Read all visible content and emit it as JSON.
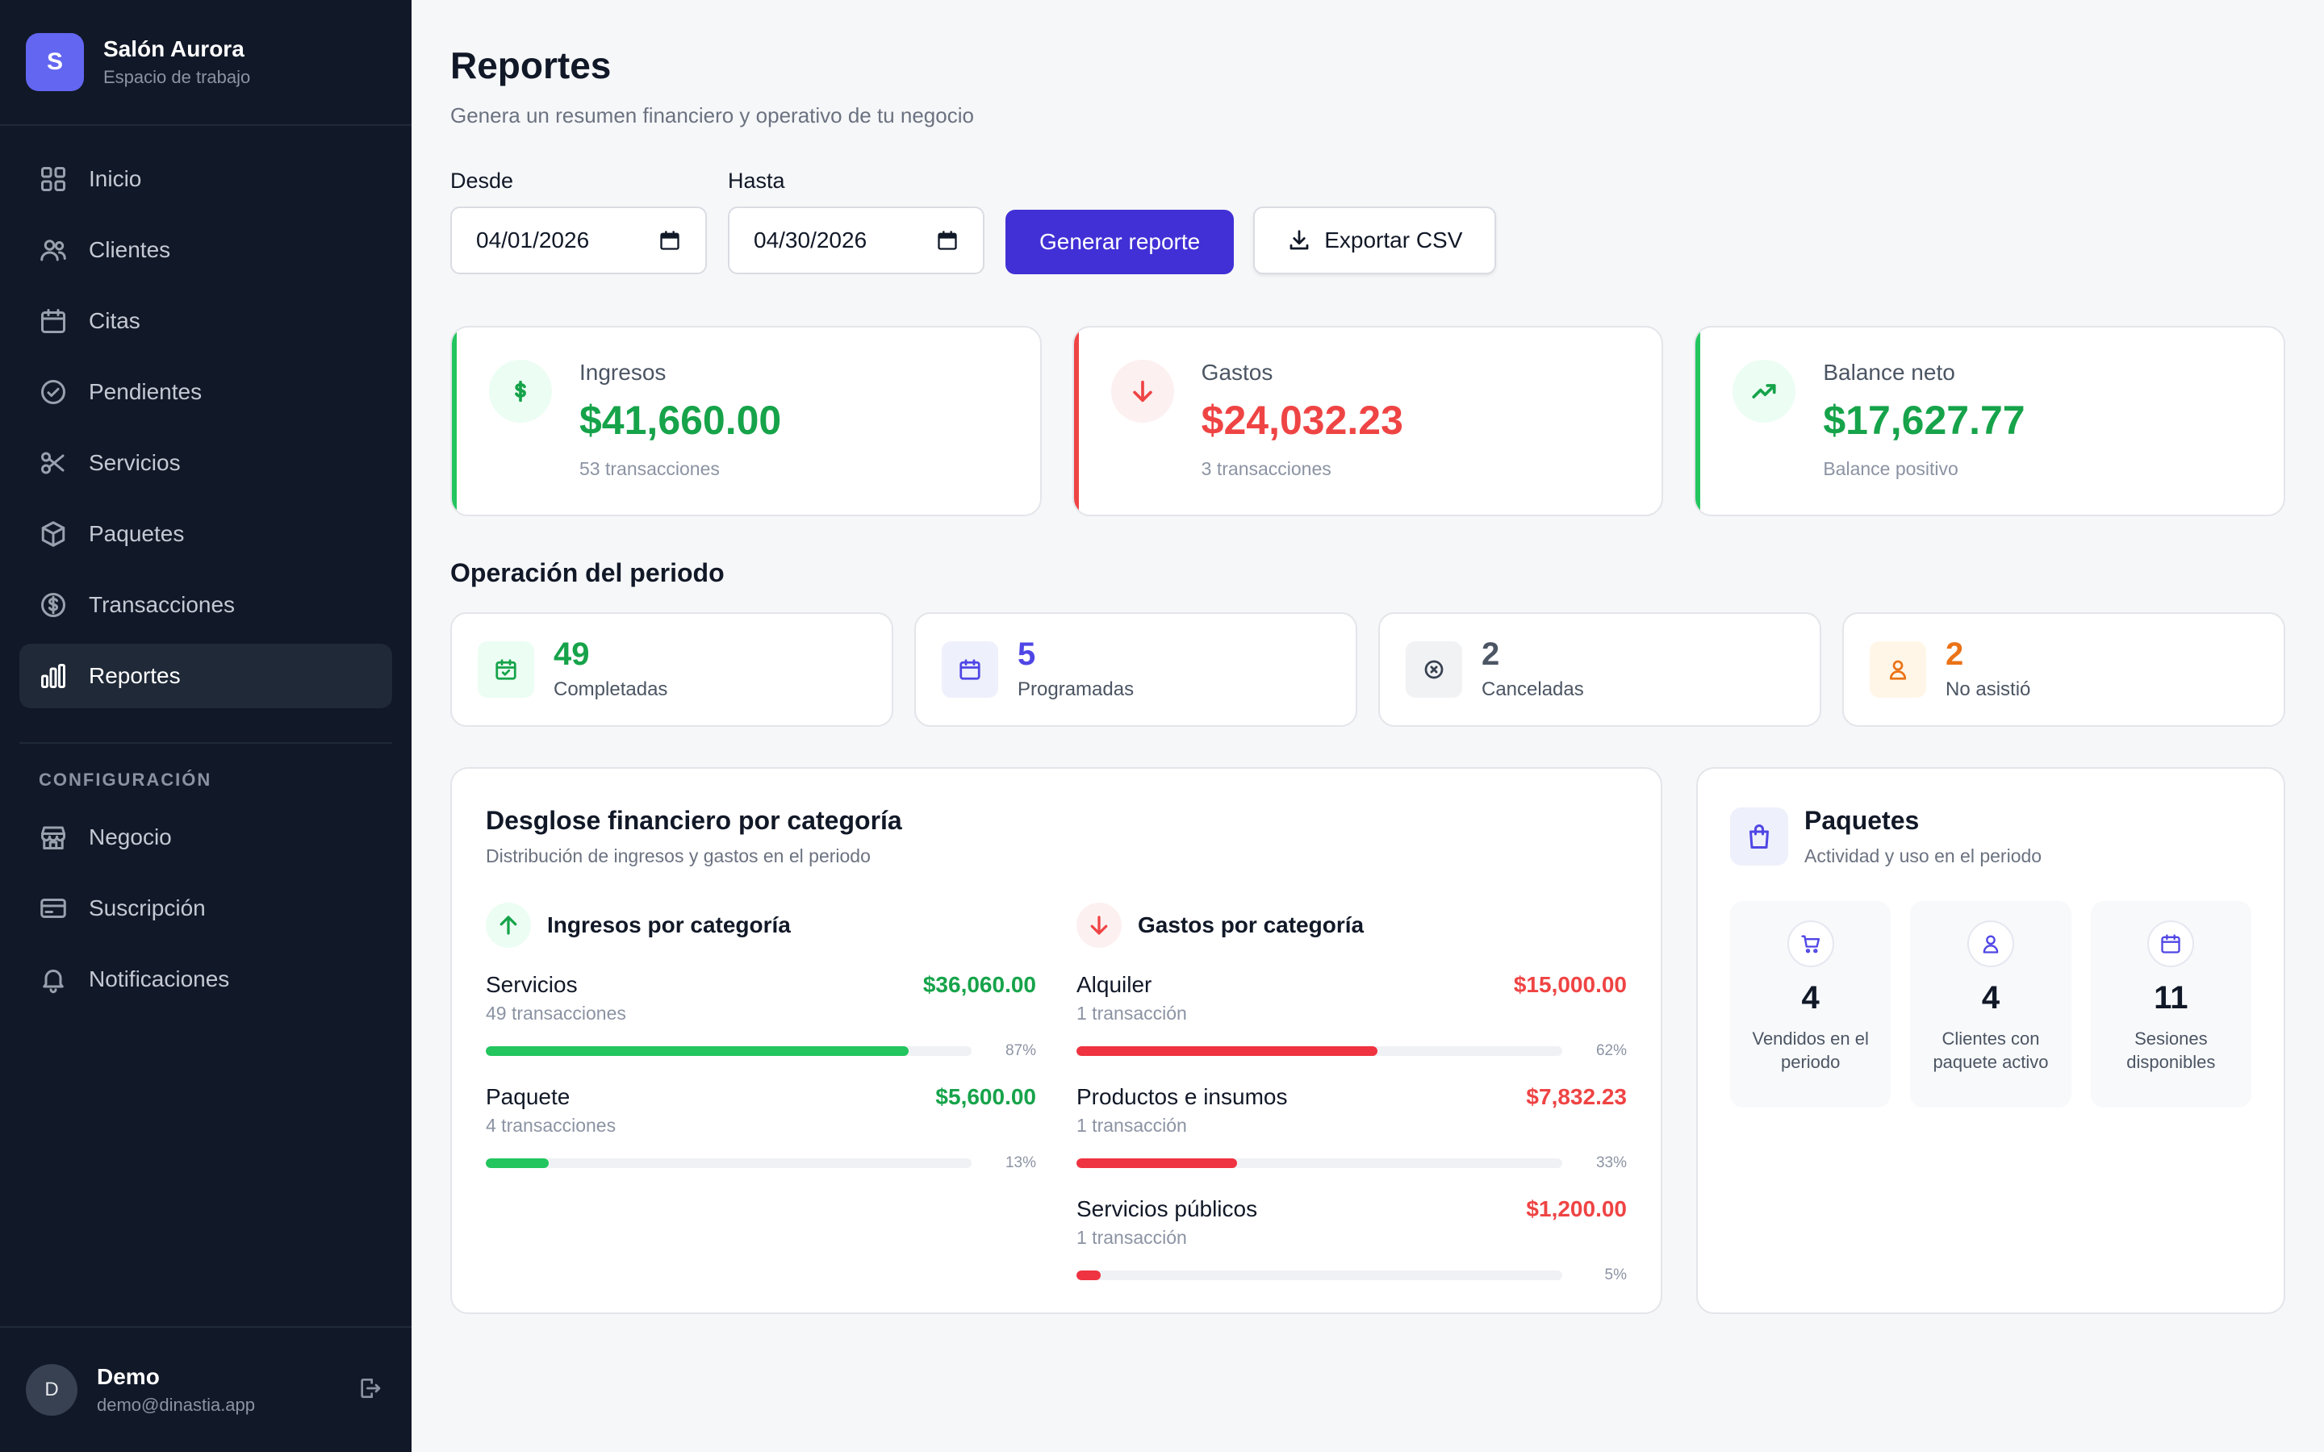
{
  "brand": {
    "initial": "S",
    "name": "Salón Aurora",
    "subtitle": "Espacio de trabajo"
  },
  "nav": {
    "items": [
      {
        "label": "Inicio",
        "icon": "grid-icon"
      },
      {
        "label": "Clientes",
        "icon": "users-icon"
      },
      {
        "label": "Citas",
        "icon": "calendar-icon"
      },
      {
        "label": "Pendientes",
        "icon": "check-circle-icon"
      },
      {
        "label": "Servicios",
        "icon": "scissors-icon"
      },
      {
        "label": "Paquetes",
        "icon": "box-icon"
      },
      {
        "label": "Transacciones",
        "icon": "dollar-circle-icon"
      },
      {
        "label": "Reportes",
        "icon": "bar-chart-icon",
        "active": true
      }
    ],
    "section_label": "CONFIGURACIÓN",
    "config_items": [
      {
        "label": "Negocio",
        "icon": "store-icon"
      },
      {
        "label": "Suscripción",
        "icon": "credit-card-icon"
      },
      {
        "label": "Notificaciones",
        "icon": "bell-icon"
      }
    ]
  },
  "user": {
    "initial": "D",
    "name": "Demo",
    "email": "demo@dinastia.app"
  },
  "page": {
    "title": "Reportes",
    "subtitle": "Genera un resumen financiero y operativo de tu negocio"
  },
  "filters": {
    "from_label": "Desde",
    "from_value": "04/01/2026",
    "to_label": "Hasta",
    "to_value": "04/30/2026",
    "generate_label": "Generar reporte",
    "export_label": "Exportar CSV"
  },
  "summary": {
    "income": {
      "label": "Ingresos",
      "value": "$41,660.00",
      "meta": "53 transacciones"
    },
    "expenses": {
      "label": "Gastos",
      "value": "$24,032.23",
      "meta": "3 transacciones"
    },
    "balance": {
      "label": "Balance neto",
      "value": "$17,627.77",
      "meta": "Balance positivo"
    }
  },
  "operations": {
    "title": "Operación del periodo",
    "completed": {
      "value": "49",
      "label": "Completadas",
      "color": "#16a34a"
    },
    "scheduled": {
      "value": "5",
      "label": "Programadas",
      "color": "#4f46e5"
    },
    "cancelled": {
      "value": "2",
      "label": "Canceladas",
      "color": "#4b5563"
    },
    "no_show": {
      "value": "2",
      "label": "No asistió",
      "color": "#ea7317"
    }
  },
  "breakdown": {
    "title": "Desglose financiero por categoría",
    "subtitle": "Distribución de ingresos y gastos en el periodo",
    "income_title": "Ingresos por categoría",
    "expense_title": "Gastos por categoría",
    "income": [
      {
        "name": "Servicios",
        "amount": "$36,060.00",
        "count": "49 transacciones",
        "pct": "87%",
        "fraction": 0.87
      },
      {
        "name": "Paquete",
        "amount": "$5,600.00",
        "count": "4 transacciones",
        "pct": "13%",
        "fraction": 0.13
      }
    ],
    "expenses": [
      {
        "name": "Alquiler",
        "amount": "$15,000.00",
        "count": "1 transacción",
        "pct": "62%",
        "fraction": 0.62
      },
      {
        "name": "Productos e insumos",
        "amount": "$7,832.23",
        "count": "1 transacción",
        "pct": "33%",
        "fraction": 0.33
      },
      {
        "name": "Servicios públicos",
        "amount": "$1,200.00",
        "count": "1 transacción",
        "pct": "5%",
        "fraction": 0.05
      }
    ]
  },
  "packages": {
    "title": "Paquetes",
    "subtitle": "Actividad y uso en el periodo",
    "stats": [
      {
        "value": "4",
        "label": "Vendidos en el periodo",
        "icon": "cart-icon"
      },
      {
        "value": "4",
        "label": "Clientes con paquete activo",
        "icon": "user-icon"
      },
      {
        "value": "11",
        "label": "Sesiones disponibles",
        "icon": "calendar-icon"
      }
    ]
  }
}
